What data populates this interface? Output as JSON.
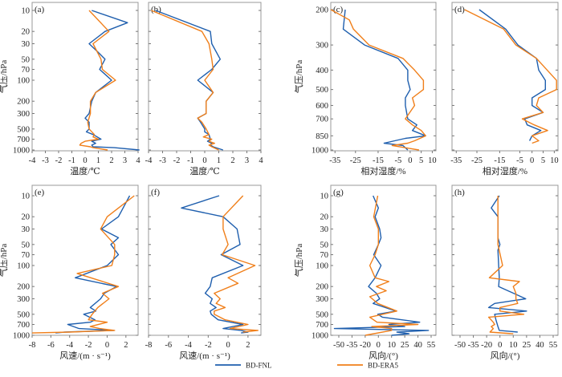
{
  "legend": [
    {
      "name": "BD-FNL",
      "color": "#1f5fae"
    },
    {
      "name": "BD-ERA5",
      "color": "#f07f1a"
    }
  ],
  "chart_data": [
    {
      "type": "line",
      "panel": "(a)",
      "xlabel": "温度/℃",
      "ylabel": "气压/hPa",
      "xticks": [
        "-4",
        "-3",
        "-2",
        "-1",
        "0",
        "1",
        "2",
        "3",
        "4"
      ],
      "xtickvals": [
        -4,
        -3,
        -2,
        -1,
        0,
        1,
        2,
        3,
        4
      ],
      "xlim": [
        -4,
        4
      ],
      "yticks": [
        10,
        20,
        30,
        50,
        70,
        100,
        200,
        300,
        500,
        700,
        1000
      ],
      "ylim": [
        1000,
        10
      ],
      "series": [
        {
          "name": "BD-FNL",
          "p": [
            10,
            15,
            20,
            30,
            40,
            50,
            70,
            100,
            150,
            200,
            300,
            350,
            400,
            500,
            550,
            600,
            700,
            750,
            800,
            850,
            900,
            925,
            1000
          ],
          "v": [
            0.5,
            3.2,
            1.5,
            0.3,
            1.0,
            1.5,
            1.1,
            2.0,
            0.8,
            0.5,
            0.3,
            0,
            0.3,
            0.3,
            0.1,
            0.6,
            1.2,
            0.5,
            0.8,
            0.5,
            0.6,
            2.2,
            4.1
          ]
        },
        {
          "name": "BD-ERA5",
          "p": [
            10,
            20,
            30,
            50,
            70,
            100,
            150,
            200,
            300,
            400,
            500,
            600,
            650,
            700,
            750,
            800,
            850,
            900,
            925,
            1000
          ],
          "v": [
            0.3,
            1.8,
            0.6,
            1.2,
            1.3,
            2.3,
            0.8,
            0.4,
            0.4,
            0.2,
            0.3,
            0.7,
            0.6,
            1.0,
            0,
            -0.3,
            -0.4,
            0.4,
            0.6,
            1.7
          ]
        }
      ]
    },
    {
      "type": "line",
      "panel": "(b)",
      "xlabel": "温度/℃",
      "ylabel": "",
      "xticks": [
        "-4",
        "-3",
        "-2",
        "-1",
        "0",
        "1",
        "2",
        "3",
        "4"
      ],
      "xtickvals": [
        -4,
        -3,
        -2,
        -1,
        0,
        1,
        2,
        3,
        4
      ],
      "xlim": [
        -4,
        4
      ],
      "yticks": [
        10,
        20,
        30,
        50,
        70,
        100,
        200,
        300,
        500,
        700,
        1000
      ],
      "ylim": [
        1000,
        10
      ],
      "series": [
        {
          "name": "BD-FNL",
          "p": [
            10,
            20,
            30,
            50,
            70,
            100,
            150,
            200,
            300,
            350,
            400,
            500,
            550,
            600,
            700,
            750,
            800,
            850,
            900,
            1000
          ],
          "v": [
            -3.5,
            0.4,
            0.5,
            1.1,
            0.5,
            -0.5,
            0.6,
            0.1,
            0.1,
            -0.5,
            -0.3,
            0,
            0,
            0.3,
            0.4,
            0.2,
            0.5,
            0.4,
            0.6,
            1.3
          ]
        },
        {
          "name": "BD-ERA5",
          "p": [
            10,
            20,
            30,
            50,
            70,
            100,
            150,
            200,
            300,
            350,
            400,
            500,
            600,
            650,
            700,
            750,
            800,
            850,
            900,
            1000
          ],
          "v": [
            -3.8,
            -0.2,
            0.3,
            0.5,
            0.6,
            0,
            0.6,
            0.1,
            0.1,
            -0.5,
            -0.2,
            0.1,
            0.3,
            -0.1,
            0.5,
            0.3,
            0.7,
            0.3,
            0.5,
            1.0
          ]
        }
      ]
    },
    {
      "type": "line",
      "panel": "(c)",
      "xlabel": "相对湿度/%",
      "ylabel": "气压/hPa",
      "xticks": [
        "-35",
        "-25",
        "-15",
        "-5",
        "0",
        "5",
        "10"
      ],
      "xtickvals": [
        -35,
        -25,
        -15,
        -5,
        0,
        5,
        10
      ],
      "xlim": [
        -40,
        10
      ],
      "yticks": [
        200,
        300,
        400,
        500,
        600,
        700,
        850,
        1000
      ],
      "ylim": [
        1000,
        200
      ],
      "series": [
        {
          "name": "BD-FNL",
          "p": [
            200,
            250,
            300,
            350,
            400,
            450,
            500,
            550,
            600,
            700,
            750,
            800,
            850,
            875,
            925,
            950,
            1000
          ],
          "v": [
            -30,
            -31,
            -21,
            -5,
            -1,
            -1,
            0,
            -2,
            -2,
            -1,
            3,
            1,
            7,
            -2,
            -12,
            -3,
            -1
          ]
        },
        {
          "name": "BD-ERA5",
          "p": [
            200,
            225,
            250,
            300,
            350,
            400,
            450,
            500,
            550,
            600,
            700,
            750,
            800,
            850,
            900,
            925,
            950,
            1000
          ],
          "v": [
            -37,
            -28,
            -26,
            -19,
            -3,
            2,
            6,
            6,
            1,
            2,
            -2,
            1,
            5,
            7,
            2,
            -1,
            -8,
            4
          ]
        }
      ]
    },
    {
      "type": "line",
      "panel": "(d)",
      "xlabel": "相对湿度/%",
      "ylabel": "",
      "xticks": [
        "-35",
        "-25",
        "-15",
        "-5",
        "0",
        "5",
        "10"
      ],
      "xtickvals": [
        -35,
        -25,
        -15,
        -5,
        0,
        5,
        10
      ],
      "xlim": [
        -40,
        13
      ],
      "yticks": [
        200,
        300,
        400,
        500,
        600,
        700,
        850,
        1000
      ],
      "ylim": [
        1000,
        200
      ],
      "series": [
        {
          "name": "BD-FNL",
          "p": [
            200,
            250,
            300,
            350,
            400,
            450,
            500,
            550,
            600,
            650,
            700,
            750,
            800,
            850,
            900
          ],
          "v": [
            -24,
            -12,
            -6,
            2,
            3,
            6,
            6,
            0,
            0,
            5,
            -3,
            -2,
            4,
            0,
            -1
          ]
        },
        {
          "name": "BD-ERA5",
          "p": [
            200,
            250,
            300,
            350,
            450,
            500,
            550,
            600,
            650,
            700,
            750,
            800,
            850,
            900,
            925
          ],
          "v": [
            -31,
            -13,
            -7,
            2,
            11,
            11,
            3,
            2,
            5,
            -4,
            1,
            7,
            0,
            3,
            0
          ]
        }
      ]
    },
    {
      "type": "line",
      "panel": "(e)",
      "xlabel": "风速/(m · s⁻¹)",
      "ylabel": "气压/hPa",
      "xticks": [
        "-8",
        "-6",
        "-4",
        "-2",
        "0",
        "2"
      ],
      "xtickvals": [
        -8,
        -6,
        -4,
        -2,
        0,
        2
      ],
      "xlim": [
        -8,
        3.3
      ],
      "yticks": [
        10,
        20,
        30,
        50,
        70,
        100,
        200,
        300,
        500,
        700,
        1000
      ],
      "ylim": [
        1000,
        10
      ],
      "series": [
        {
          "name": "BD-FNL",
          "p": [
            10,
            20,
            30,
            40,
            50,
            70,
            100,
            150,
            200,
            250,
            300,
            400,
            450,
            500,
            600,
            650,
            700,
            800,
            850,
            900,
            925
          ],
          "v": [
            2.4,
            1.2,
            -0.6,
            1.2,
            0.4,
            1.2,
            0,
            -3.4,
            1,
            -0.3,
            -0.7,
            -1.8,
            -1.2,
            -2.5,
            -1.3,
            -1.8,
            -4.2,
            -3,
            0.7,
            -4.5,
            -5.5
          ]
        },
        {
          "name": "BD-ERA5",
          "p": [
            10,
            20,
            30,
            50,
            70,
            100,
            130,
            200,
            250,
            300,
            400,
            500,
            600,
            650,
            750,
            800,
            850,
            900,
            925
          ],
          "v": [
            2.9,
            0,
            -0.7,
            0.8,
            0.8,
            0.5,
            -3.2,
            1.2,
            -0.5,
            0.2,
            -1,
            -1.6,
            -2,
            0,
            -1.8,
            -0.8,
            0.8,
            -4,
            -8
          ]
        }
      ]
    },
    {
      "type": "line",
      "panel": "(f)",
      "xlabel": "风速/(m · s⁻¹)",
      "ylabel": "",
      "xticks": [
        "-8",
        "-6",
        "-4",
        "-2",
        "0",
        "2"
      ],
      "xtickvals": [
        -8,
        -6,
        -4,
        -2,
        0,
        2
      ],
      "xlim": [
        -8,
        3.3
      ],
      "yticks": [
        10,
        20,
        30,
        50,
        70,
        100,
        200,
        300,
        500,
        700,
        1000
      ],
      "ylim": [
        1000,
        10
      ],
      "series": [
        {
          "name": "BD-FNL",
          "p": [
            10,
            15,
            20,
            30,
            50,
            70,
            100,
            150,
            200,
            250,
            300,
            350,
            400,
            450,
            500,
            600,
            700,
            800,
            850,
            900,
            925
          ],
          "v": [
            -0.9,
            -4.7,
            -0.5,
            0.9,
            1.2,
            -0.7,
            1.5,
            -1.6,
            -1.8,
            -2.3,
            -1.6,
            -1.8,
            -1.2,
            -1.8,
            -1.7,
            -1,
            1.5,
            -0.5,
            1.3,
            2,
            1.3
          ]
        },
        {
          "name": "BD-ERA5",
          "p": [
            10,
            20,
            30,
            50,
            70,
            100,
            150,
            180,
            250,
            300,
            350,
            400,
            450,
            500,
            600,
            700,
            800,
            850,
            900
          ],
          "v": [
            1.5,
            -0.5,
            -0.5,
            0,
            -0.6,
            2.7,
            0,
            1,
            -1.4,
            -0.8,
            -1.2,
            -0.3,
            -1.4,
            -1.4,
            -0.3,
            2,
            0.2,
            3,
            1.5
          ]
        }
      ]
    },
    {
      "type": "line",
      "panel": "(g)",
      "xlabel": "风向/(°)",
      "ylabel": "气压/hPa",
      "xticks": [
        "-50",
        "-35",
        "-20",
        "0",
        "10",
        "25",
        "40",
        "55"
      ],
      "xtickvals": [
        -50,
        -35,
        -20,
        0,
        10,
        25,
        40,
        55
      ],
      "xlim": [
        -55,
        55
      ],
      "yticks": [
        10,
        20,
        30,
        50,
        70,
        100,
        200,
        300,
        500,
        700,
        1000
      ],
      "ylim": [
        1000,
        10
      ],
      "series": [
        {
          "name": "BD-FNL",
          "p": [
            10,
            15,
            20,
            30,
            40,
            50,
            70,
            100,
            150,
            200,
            250,
            300,
            350,
            450,
            500,
            550,
            650,
            700,
            750,
            800,
            850,
            900,
            950,
            1000
          ],
          "v": [
            -8,
            0,
            -5,
            1,
            2,
            0,
            -7,
            2,
            -5,
            -15,
            -3,
            1,
            -8,
            15,
            -1,
            3,
            42,
            8,
            25,
            -55,
            52,
            16,
            30,
            10
          ]
        },
        {
          "name": "BD-ERA5",
          "p": [
            10,
            20,
            30,
            50,
            70,
            100,
            150,
            170,
            200,
            230,
            280,
            350,
            450,
            550,
            650,
            700,
            750,
            800,
            850,
            1000
          ],
          "v": [
            -1,
            -7,
            0,
            0,
            -5,
            -13,
            -5,
            8,
            -3,
            6,
            -13,
            -1,
            16,
            -13,
            -2,
            40,
            -10,
            10,
            10,
            -20
          ]
        }
      ]
    },
    {
      "type": "line",
      "panel": "(h)",
      "xlabel": "风向/(°)",
      "ylabel": "",
      "xticks": [
        "-50",
        "-35",
        "-20",
        "0",
        "10",
        "25",
        "40",
        "55"
      ],
      "xtickvals": [
        -50,
        -35,
        -20,
        0,
        10,
        25,
        40,
        55
      ],
      "xlim": [
        -55,
        55
      ],
      "yticks": [
        10,
        20,
        30,
        50,
        70,
        100,
        200,
        300,
        500,
        700,
        1000
      ],
      "ylim": [
        1000,
        10
      ],
      "series": [
        {
          "name": "BD-FNL",
          "p": [
            10,
            15,
            20,
            40,
            50,
            60,
            100,
            150,
            200,
            300,
            350,
            400,
            450,
            500,
            600,
            750,
            850,
            900
          ],
          "v": [
            -1,
            -13,
            -3,
            -3,
            0,
            -3,
            -2,
            -1,
            -2,
            24,
            -8,
            -17,
            25,
            -8,
            -6,
            -3,
            -1,
            15
          ]
        },
        {
          "name": "BD-ERA5",
          "p": [
            10,
            50,
            100,
            150,
            170,
            200,
            250,
            300,
            350,
            400,
            450,
            500,
            550,
            650,
            700,
            750,
            800,
            900,
            950
          ],
          "v": [
            -3,
            -3,
            2,
            -16,
            17,
            10,
            13,
            13,
            15,
            0,
            0,
            22,
            -17,
            -10,
            -8,
            -13,
            -10,
            -15,
            10
          ]
        }
      ]
    }
  ]
}
